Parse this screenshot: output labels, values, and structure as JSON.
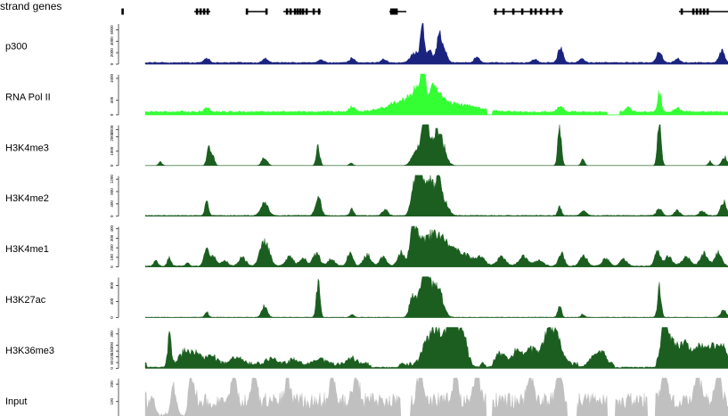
{
  "chart_data": {
    "type": "area",
    "gene_track_label": "strand genes",
    "genes": [
      {
        "start": 137,
        "end": 139,
        "exons": [
          137.5
        ]
      },
      {
        "start": 218,
        "end": 236,
        "exons": [
          221,
          225,
          229,
          233
        ]
      },
      {
        "start": 276,
        "end": 300,
        "exons": [
          277,
          299
        ]
      },
      {
        "start": 318,
        "end": 360,
        "exons": [
          322,
          326,
          331,
          334,
          337,
          340,
          344,
          352,
          358
        ]
      },
      {
        "start": 437,
        "end": 456,
        "exons": [
          439,
          441,
          443,
          445
        ]
      },
      {
        "start": 554,
        "end": 632,
        "exons": [
          556,
          565,
          576,
          586,
          596,
          601,
          607,
          614,
          621,
          629
        ]
      },
      {
        "start": 762,
        "end": 817,
        "exons": [
          765,
          778,
          782,
          786,
          790,
          794
        ]
      }
    ],
    "tracks": [
      {
        "name": "p300",
        "color": "#1a237e",
        "ticks": [
          "0",
          "2000",
          "4000",
          "6000"
        ],
        "ymax": 7000,
        "baseline": 200,
        "amp": 160,
        "gaps": [],
        "low_segments": [],
        "peaks": [
          [
            232,
            800,
            3
          ],
          [
            298,
            700,
            3
          ],
          [
            360,
            500,
            3
          ],
          [
            395,
            800,
            3
          ],
          [
            431,
            600,
            3
          ],
          [
            466,
            1800,
            5
          ],
          [
            474,
            6500,
            2
          ],
          [
            482,
            2200,
            3
          ],
          [
            493,
            4500,
            3
          ],
          [
            499,
            1800,
            3
          ],
          [
            535,
            900,
            3
          ],
          [
            600,
            600,
            3
          ],
          [
            629,
            2500,
            3
          ],
          [
            653,
            700,
            3
          ],
          [
            740,
            2000,
            3
          ],
          [
            760,
            700,
            3
          ],
          [
            810,
            2000,
            3
          ]
        ]
      },
      {
        "name": "RNA Pol II",
        "color": "#33ff33",
        "ticks": [
          "0",
          "400",
          "1000"
        ],
        "ymax": 1100,
        "baseline": 60,
        "amp": 50,
        "gaps": [
          [
            547,
            552
          ],
          [
            682,
            695
          ]
        ],
        "low_segments": [],
        "peaks": [
          [
            232,
            120,
            3
          ],
          [
            395,
            130,
            3
          ],
          [
            462,
            350,
            22
          ],
          [
            470,
            300,
            6
          ],
          [
            475,
            950,
            2
          ],
          [
            486,
            400,
            3
          ],
          [
            493,
            250,
            4
          ],
          [
            510,
            200,
            25
          ],
          [
            629,
            150,
            3
          ],
          [
            705,
            120,
            3
          ],
          [
            740,
            550,
            2
          ],
          [
            760,
            120,
            3
          ]
        ]
      },
      {
        "name": "H3K4me3",
        "color": "#1b5e20",
        "ticks": [
          "0",
          "1000",
          "2000",
          "2500"
        ],
        "ymax": 2800,
        "baseline": 0,
        "amp": 0,
        "gaps": [],
        "low_segments": [],
        "peaks": [
          [
            180,
            250,
            2
          ],
          [
            234,
            1300,
            2
          ],
          [
            239,
            700,
            2
          ],
          [
            297,
            600,
            3
          ],
          [
            357,
            1300,
            2
          ],
          [
            394,
            200,
            2
          ],
          [
            465,
            500,
            4
          ],
          [
            473,
            1200,
            6
          ],
          [
            477,
            2800,
            3
          ],
          [
            488,
            1800,
            6
          ],
          [
            496,
            1100,
            5
          ],
          [
            628,
            2600,
            2
          ],
          [
            654,
            400,
            2
          ],
          [
            740,
            3700,
            2
          ],
          [
            797,
            300,
            2
          ],
          [
            813,
            600,
            3
          ]
        ]
      },
      {
        "name": "H3K4me2",
        "color": "#1b5e20",
        "ticks": [
          "0",
          "400",
          "800",
          "1200"
        ],
        "ymax": 1300,
        "baseline": 15,
        "amp": 20,
        "gaps": [],
        "low_segments": [],
        "peaks": [
          [
            232,
            430,
            2
          ],
          [
            297,
            450,
            4
          ],
          [
            357,
            630,
            3
          ],
          [
            395,
            220,
            2
          ],
          [
            432,
            200,
            3
          ],
          [
            466,
            1100,
            4
          ],
          [
            471,
            1150,
            3
          ],
          [
            478,
            700,
            5
          ],
          [
            485,
            780,
            5
          ],
          [
            493,
            900,
            3
          ],
          [
            500,
            400,
            4
          ],
          [
            628,
            300,
            2
          ],
          [
            655,
            160,
            3
          ],
          [
            740,
            230,
            3
          ],
          [
            760,
            160,
            3
          ],
          [
            788,
            160,
            3
          ],
          [
            812,
            480,
            3
          ]
        ]
      },
      {
        "name": "H3K4me1",
        "color": "#1b5e20",
        "ticks": [
          "0",
          "100",
          "200",
          "300",
          "400"
        ],
        "ymax": 420,
        "baseline": 5,
        "amp": 10,
        "gaps": [],
        "low_segments": [],
        "peaks": [
          [
            175,
            60,
            2
          ],
          [
            190,
            90,
            2
          ],
          [
            210,
            40,
            2
          ],
          [
            232,
            160,
            3
          ],
          [
            240,
            100,
            3
          ],
          [
            252,
            50,
            4
          ],
          [
            272,
            90,
            4
          ],
          [
            297,
            260,
            5
          ],
          [
            325,
            100,
            4
          ],
          [
            340,
            80,
            4
          ],
          [
            355,
            130,
            4
          ],
          [
            372,
            70,
            4
          ],
          [
            393,
            160,
            3
          ],
          [
            412,
            120,
            4
          ],
          [
            430,
            90,
            4
          ],
          [
            450,
            140,
            4
          ],
          [
            463,
            400,
            3
          ],
          [
            470,
            280,
            5
          ],
          [
            482,
            260,
            6
          ],
          [
            493,
            220,
            6
          ],
          [
            505,
            170,
            8
          ],
          [
            522,
            110,
            8
          ],
          [
            540,
            90,
            5
          ],
          [
            563,
            90,
            5
          ],
          [
            587,
            100,
            5
          ],
          [
            605,
            60,
            5
          ],
          [
            630,
            140,
            3
          ],
          [
            655,
            110,
            4
          ],
          [
            680,
            80,
            4
          ],
          [
            700,
            70,
            4
          ],
          [
            738,
            170,
            3
          ],
          [
            750,
            100,
            4
          ],
          [
            770,
            90,
            5
          ],
          [
            790,
            140,
            4
          ],
          [
            806,
            140,
            4
          ]
        ]
      },
      {
        "name": "H3K27ac",
        "color": "#1b5e20",
        "ticks": [
          "0",
          "400",
          "800"
        ],
        "ymax": 1000,
        "baseline": 5,
        "amp": 10,
        "gaps": [],
        "low_segments": [],
        "peaks": [
          [
            232,
            130,
            2
          ],
          [
            297,
            280,
            3
          ],
          [
            357,
            920,
            2
          ],
          [
            395,
            80,
            2
          ],
          [
            462,
            400,
            3
          ],
          [
            470,
            550,
            4
          ],
          [
            477,
            1050,
            3
          ],
          [
            484,
            700,
            5
          ],
          [
            493,
            550,
            5
          ],
          [
            628,
            300,
            2
          ],
          [
            654,
            80,
            2
          ],
          [
            740,
            700,
            2
          ],
          [
            812,
            170,
            3
          ]
        ]
      },
      {
        "name": "H3K36me3",
        "color": "#1b5e20",
        "ticks": [
          "0",
          "50",
          "100",
          "150",
          "200",
          "300"
        ],
        "ymax": 350,
        "baseline": 20,
        "amp": 35,
        "gaps": [],
        "low_segments": [
          [
            165,
            188
          ],
          [
            417,
            447
          ],
          [
            526,
            538
          ],
          [
            546,
            552
          ],
          [
            650,
            665
          ],
          [
            690,
            736
          ]
        ],
        "peaks": [
          [
            190,
            250,
            2
          ],
          [
            207,
            110,
            5
          ],
          [
            220,
            90,
            6
          ],
          [
            237,
            70,
            6
          ],
          [
            266,
            60,
            6
          ],
          [
            305,
            50,
            6
          ],
          [
            330,
            40,
            6
          ],
          [
            360,
            40,
            6
          ],
          [
            395,
            50,
            5
          ],
          [
            480,
            200,
            6
          ],
          [
            490,
            240,
            5
          ],
          [
            498,
            150,
            5
          ],
          [
            505,
            300,
            4
          ],
          [
            513,
            240,
            5
          ],
          [
            521,
            180,
            5
          ],
          [
            562,
            100,
            5
          ],
          [
            580,
            110,
            6
          ],
          [
            596,
            130,
            6
          ],
          [
            608,
            90,
            5
          ],
          [
            617,
            260,
            5
          ],
          [
            625,
            200,
            6
          ],
          [
            665,
            90,
            5
          ],
          [
            676,
            110,
            4
          ],
          [
            745,
            310,
            3
          ],
          [
            752,
            240,
            6
          ],
          [
            768,
            180,
            6
          ],
          [
            785,
            140,
            6
          ],
          [
            800,
            150,
            6
          ],
          [
            812,
            120,
            5
          ]
        ]
      },
      {
        "name": "Input",
        "color": "#c0c0c0",
        "ticks": [
          "0",
          "100",
          "200"
        ],
        "ymax": 230,
        "baseline": 60,
        "amp": 90,
        "gaps": [
          [
            450,
            460
          ],
          [
            546,
            552
          ],
          [
            637,
            647
          ],
          [
            682,
            690
          ],
          [
            727,
            735
          ]
        ],
        "low_segments": [
          [
            165,
            210
          ]
        ],
        "peaks": [
          [
            170,
            110,
            3
          ],
          [
            195,
            150,
            3
          ],
          [
            215,
            170,
            3
          ],
          [
            262,
            130,
            3
          ],
          [
            285,
            160,
            3
          ],
          [
            323,
            150,
            3
          ],
          [
            373,
            160,
            3
          ],
          [
            400,
            150,
            3
          ],
          [
            471,
            200,
            3
          ],
          [
            511,
            190,
            3
          ],
          [
            535,
            200,
            3
          ],
          [
            595,
            160,
            3
          ],
          [
            627,
            180,
            3
          ],
          [
            746,
            200,
            3
          ],
          [
            783,
            180,
            3
          ],
          [
            806,
            170,
            3
          ]
        ]
      }
    ]
  }
}
